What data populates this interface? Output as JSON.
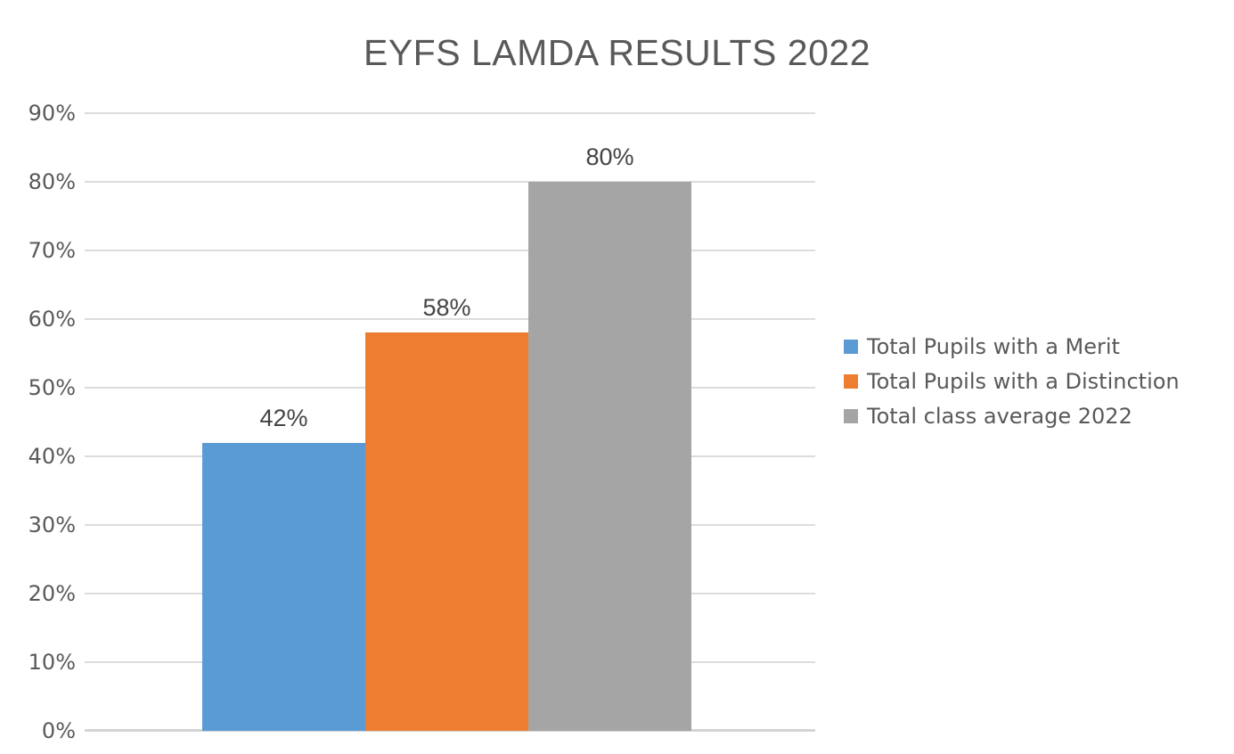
{
  "chart_data": {
    "type": "bar",
    "title": "EYFS LAMDA RESULTS 2022",
    "categories": [
      ""
    ],
    "series": [
      {
        "name": "Total Pupils with a Merit",
        "values": [
          42
        ],
        "data_label": "42%",
        "color": "#5B9BD5"
      },
      {
        "name": "Total Pupils with a Distinction",
        "values": [
          58
        ],
        "data_label": "58%",
        "color": "#ED7D31"
      },
      {
        "name": "Total class average 2022",
        "values": [
          80
        ],
        "data_label": "80%",
        "color": "#A5A5A5"
      }
    ],
    "xlabel": "",
    "ylabel": "",
    "ylim": [
      0,
      90
    ],
    "yticks": [
      "0%",
      "10%",
      "20%",
      "30%",
      "40%",
      "50%",
      "60%",
      "70%",
      "80%",
      "90%"
    ],
    "ytick_values": [
      0,
      10,
      20,
      30,
      40,
      50,
      60,
      70,
      80,
      90
    ],
    "grid": true,
    "legend_position": "right",
    "text_colors": {
      "title": "#595959",
      "ticks": "#595959",
      "data_labels": "#444444",
      "legend": "#595959"
    },
    "gridline_color": "#dcdcdc"
  }
}
